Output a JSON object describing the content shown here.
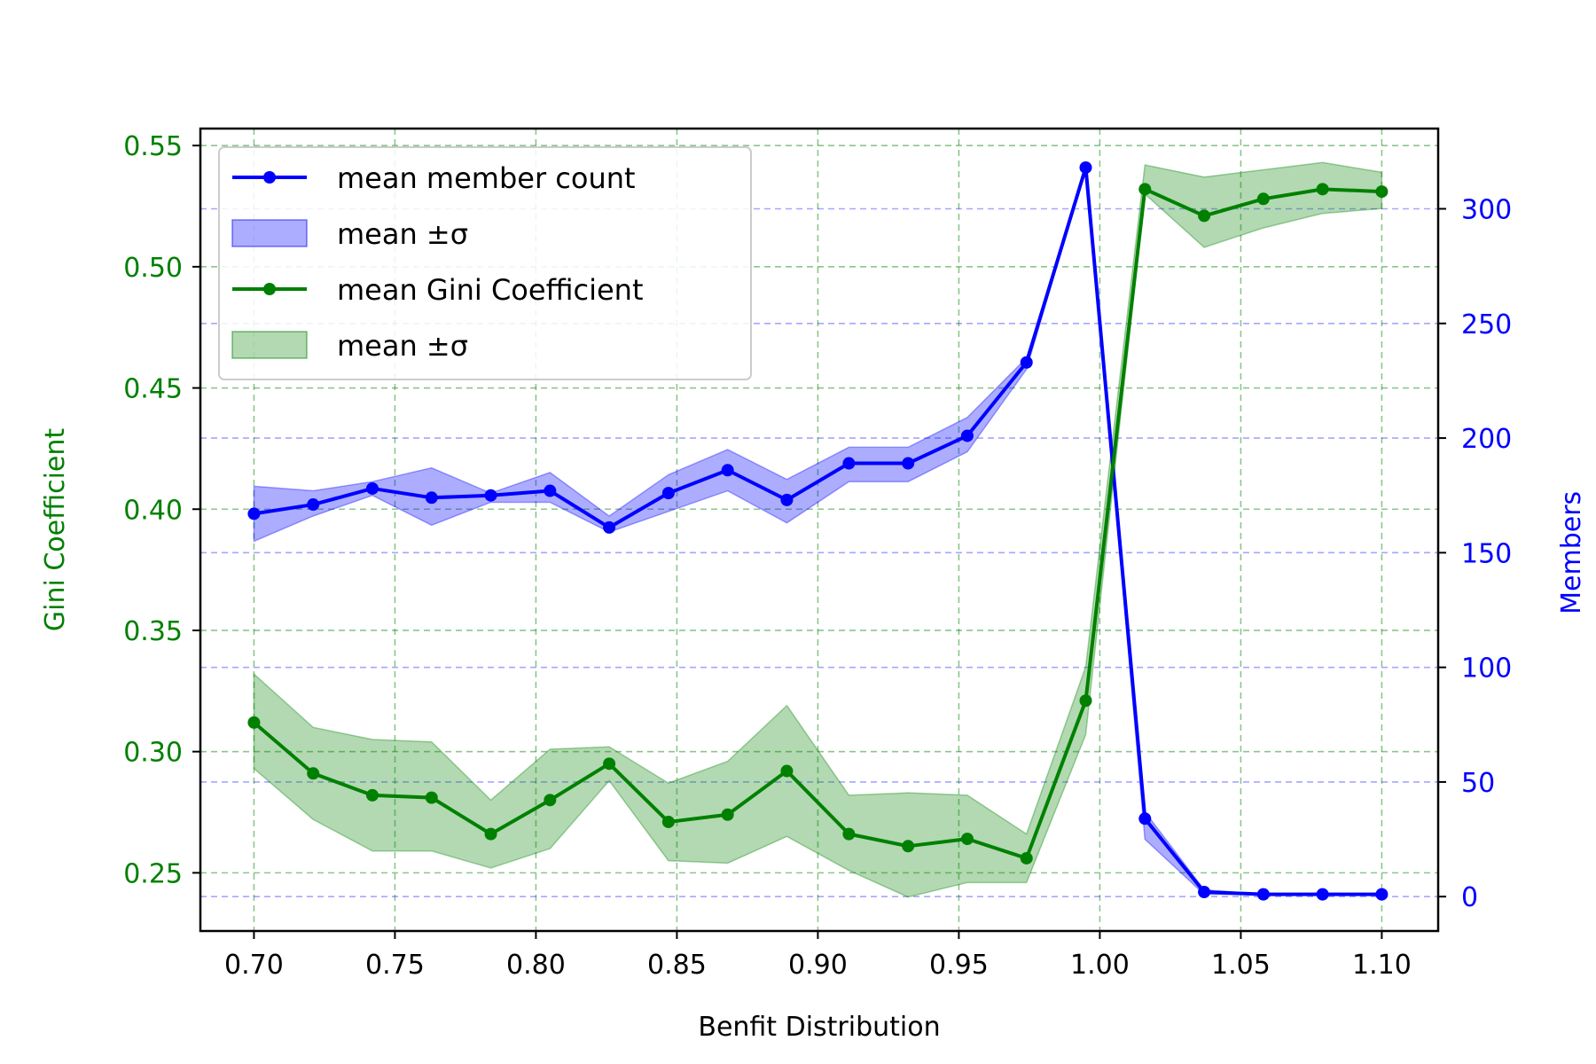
{
  "chart_data": {
    "type": "line",
    "xlabel": "Benfit Distribution",
    "y_left_label": "Gini Coefficient",
    "y_right_label": "Members",
    "xlim": [
      0.681,
      1.12
    ],
    "y_left_lim": [
      0.226,
      0.557
    ],
    "y_right_lim": [
      -15,
      335
    ],
    "x_ticks": [
      0.7,
      0.75,
      0.8,
      0.85,
      0.9,
      0.95,
      1.0,
      1.05,
      1.1
    ],
    "x_tick_labels": [
      "0.70",
      "0.75",
      "0.80",
      "0.85",
      "0.90",
      "0.95",
      "1.00",
      "1.05",
      "1.10"
    ],
    "y_left_ticks": [
      0.25,
      0.3,
      0.35,
      0.4,
      0.45,
      0.5,
      0.55
    ],
    "y_left_tick_labels": [
      "0.25",
      "0.30",
      "0.35",
      "0.40",
      "0.45",
      "0.50",
      "0.55"
    ],
    "y_right_ticks": [
      0,
      50,
      100,
      150,
      200,
      250,
      300
    ],
    "y_right_tick_labels": [
      "0",
      "50",
      "100",
      "150",
      "200",
      "250",
      "300"
    ],
    "grid": true,
    "legend_position": "upper-left",
    "colors": {
      "members": "#0000ff",
      "members_band": "#0000ff",
      "gini": "#008000",
      "gini_band": "#008000",
      "axis": "#000000"
    },
    "x": [
      0.7,
      0.721,
      0.742,
      0.763,
      0.784,
      0.805,
      0.826,
      0.847,
      0.868,
      0.889,
      0.911,
      0.932,
      0.953,
      0.974,
      0.995,
      1.016,
      1.037,
      1.058,
      1.079,
      1.1
    ],
    "series": [
      {
        "name": "mean member count",
        "axis": "right",
        "band_name": "mean ±σ",
        "values": [
          167,
          171,
          178,
          174,
          175,
          177,
          161,
          176,
          186,
          173,
          189,
          189,
          201,
          233,
          318,
          34,
          2,
          1,
          1,
          1
        ],
        "upper": [
          179,
          177,
          181,
          187,
          176,
          185,
          166,
          184,
          195,
          182,
          196,
          196,
          209,
          235,
          318,
          37,
          3,
          1,
          1,
          1
        ],
        "lower": [
          155,
          166,
          175,
          162,
          172,
          172,
          159,
          168,
          177,
          163,
          181,
          181,
          194,
          230,
          318,
          25,
          1,
          1,
          1,
          1
        ]
      },
      {
        "name": "mean Gini Coefficient",
        "axis": "left",
        "band_name": "mean ±σ",
        "values": [
          0.312,
          0.291,
          0.282,
          0.281,
          0.266,
          0.28,
          0.295,
          0.271,
          0.274,
          0.292,
          0.266,
          0.261,
          0.264,
          0.256,
          0.321,
          0.532,
          0.521,
          0.528,
          0.532,
          0.531
        ],
        "upper": [
          0.332,
          0.31,
          0.305,
          0.304,
          0.28,
          0.301,
          0.302,
          0.287,
          0.296,
          0.319,
          0.282,
          0.283,
          0.282,
          0.266,
          0.335,
          0.542,
          0.537,
          0.54,
          0.543,
          0.539
        ],
        "lower": [
          0.293,
          0.272,
          0.259,
          0.259,
          0.252,
          0.26,
          0.288,
          0.255,
          0.254,
          0.265,
          0.251,
          0.24,
          0.246,
          0.246,
          0.307,
          0.53,
          0.508,
          0.516,
          0.522,
          0.524
        ]
      }
    ]
  }
}
